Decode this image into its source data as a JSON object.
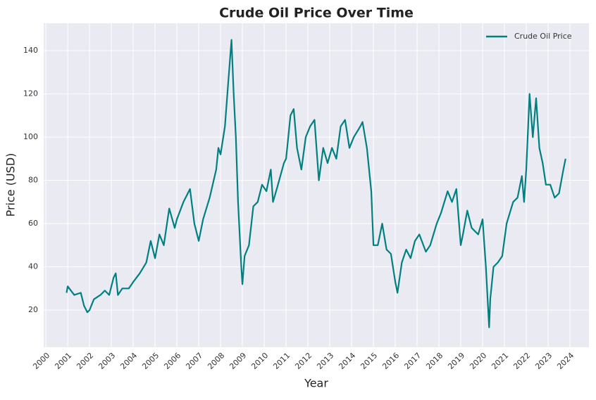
{
  "chart_data": {
    "type": "line",
    "title": "Crude Oil Price Over Time",
    "xlabel": "Year",
    "ylabel": "Price (USD)",
    "x": [
      2000.95,
      2001.0,
      2001.3,
      2001.6,
      2001.75,
      2001.9,
      2002.0,
      2002.2,
      2002.5,
      2002.7,
      2002.9,
      2003.1,
      2003.2,
      2003.3,
      2003.5,
      2003.8,
      2004.0,
      2004.3,
      2004.6,
      2004.8,
      2005.0,
      2005.2,
      2005.4,
      2005.65,
      2005.9,
      2006.0,
      2006.3,
      2006.6,
      2006.8,
      2007.0,
      2007.2,
      2007.5,
      2007.8,
      2007.9,
      2008.0,
      2008.2,
      2008.35,
      2008.5,
      2008.6,
      2008.7,
      2008.8,
      2008.95,
      2009.0,
      2009.1,
      2009.3,
      2009.5,
      2009.7,
      2009.9,
      2010.1,
      2010.3,
      2010.4,
      2010.6,
      2010.9,
      2011.0,
      2011.2,
      2011.35,
      2011.5,
      2011.7,
      2011.9,
      2012.1,
      2012.3,
      2012.5,
      2012.7,
      2012.9,
      2013.1,
      2013.3,
      2013.5,
      2013.7,
      2013.9,
      2014.1,
      2014.4,
      2014.5,
      2014.7,
      2014.9,
      2015.0,
      2015.2,
      2015.4,
      2015.6,
      2015.8,
      2016.0,
      2016.1,
      2016.3,
      2016.5,
      2016.7,
      2016.9,
      2017.1,
      2017.4,
      2017.6,
      2017.9,
      2018.1,
      2018.4,
      2018.6,
      2018.8,
      2019.0,
      2019.1,
      2019.3,
      2019.5,
      2019.8,
      2020.0,
      2020.15,
      2020.3,
      2020.35,
      2020.5,
      2020.7,
      2020.9,
      2021.1,
      2021.4,
      2021.6,
      2021.8,
      2021.9,
      2022.0,
      2022.15,
      2022.3,
      2022.45,
      2022.6,
      2022.75,
      2022.9,
      2023.1,
      2023.3,
      2023.5,
      2023.7,
      2023.8
    ],
    "series": [
      {
        "name": "Crude Oil Price",
        "color": "#008080",
        "values": [
          28,
          31,
          27,
          28,
          22,
          19,
          20,
          25,
          27,
          29,
          27,
          35,
          37,
          27,
          30,
          30,
          33,
          37,
          42,
          52,
          44,
          55,
          50,
          67,
          58,
          62,
          70,
          76,
          60,
          52,
          62,
          72,
          85,
          95,
          92,
          105,
          125,
          145,
          120,
          100,
          70,
          40,
          32,
          45,
          50,
          68,
          70,
          78,
          75,
          85,
          70,
          77,
          88,
          90,
          110,
          113,
          95,
          85,
          100,
          105,
          108,
          80,
          95,
          88,
          95,
          90,
          105,
          108,
          95,
          100,
          105,
          107,
          95,
          75,
          50,
          50,
          60,
          48,
          46,
          33,
          28,
          42,
          48,
          44,
          52,
          55,
          47,
          50,
          60,
          65,
          75,
          70,
          76,
          50,
          55,
          66,
          58,
          55,
          62,
          40,
          12,
          25,
          40,
          42,
          45,
          60,
          70,
          72,
          82,
          70,
          85,
          120,
          100,
          118,
          95,
          88,
          78,
          78,
          72,
          74,
          85,
          90
        ]
      }
    ],
    "xlim": [
      1999.9,
      2024.87
    ],
    "xticks": [
      2000,
      2001,
      2002,
      2003,
      2004,
      2005,
      2006,
      2007,
      2008,
      2009,
      2010,
      2011,
      2012,
      2013,
      2014,
      2015,
      2016,
      2017,
      2018,
      2019,
      2020,
      2021,
      2022,
      2023,
      2024
    ],
    "ylim": [
      2.8,
      152.7
    ],
    "yticks": [
      20,
      40,
      60,
      80,
      100,
      120,
      140
    ],
    "grid": true,
    "legend": "upper right"
  }
}
